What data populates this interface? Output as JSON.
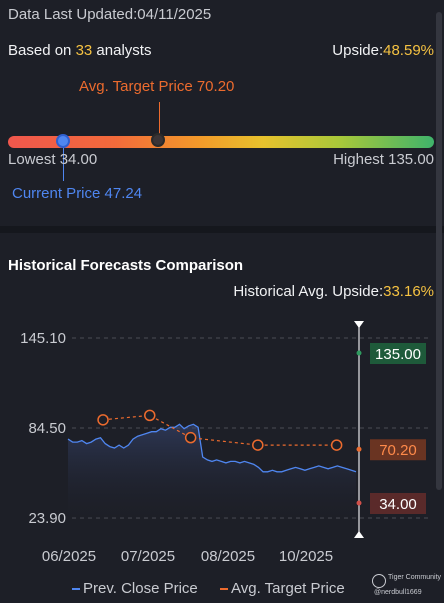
{
  "header": {
    "updated_label": "Data Last Updated:",
    "updated_date": "04/11/2025",
    "based_on_prefix": "Based on ",
    "analyst_count": "33",
    "based_on_suffix": " analysts",
    "upside_label": "Upside:",
    "upside_value": "48.59%"
  },
  "range": {
    "avg_target_label": "Avg. Target Price 70.20",
    "lowest_label": "Lowest 34.00",
    "highest_label": "Highest 135.00",
    "current_label": "Current Price 47.24"
  },
  "history": {
    "title": "Historical Forecasts Comparison",
    "avg_upside_label": "Historical Avg. Upside:",
    "avg_upside_value": "33.16%"
  },
  "legend": {
    "close": "Prev. Close Price",
    "target": "Avg. Target Price"
  },
  "watermark": {
    "brand": "Tiger Community",
    "user": "@nerdbull1669"
  },
  "colors": {
    "accent_yellow": "#f5c242",
    "close_line": "#4f86f0",
    "target_line": "#ec6b2e",
    "high_tag": "#1e5a3a",
    "avg_tag": "#6a3422",
    "low_tag": "#5a2a2a"
  },
  "chart_data": {
    "type": "line",
    "x_ticks": [
      "06/2025",
      "07/2025",
      "08/2025",
      "10/2025"
    ],
    "y_ticks": [
      145.1,
      84.5,
      23.9
    ],
    "y_tick_labels": [
      "145.10",
      "84.50",
      "23.90"
    ],
    "ylim": [
      23.9,
      145.1
    ],
    "series": [
      {
        "name": "Prev. Close Price",
        "values": [
          77,
          75,
          75,
          76,
          74,
          75,
          77,
          78,
          74,
          72,
          71,
          73,
          71,
          73,
          77,
          79,
          80,
          81,
          82,
          82,
          84,
          83,
          85,
          85,
          87,
          84,
          86,
          87,
          85,
          65,
          63,
          62,
          63,
          62,
          61,
          62,
          62,
          61,
          62,
          61,
          60,
          58,
          55,
          55,
          56,
          55,
          55,
          56,
          57,
          58,
          57,
          56,
          57,
          58,
          59,
          58,
          57,
          58,
          59,
          58,
          57,
          56,
          55
        ]
      },
      {
        "name": "Avg. Target Price",
        "points": [
          [
            0.12,
            90
          ],
          [
            0.28,
            93
          ],
          [
            0.42,
            78
          ],
          [
            0.65,
            73
          ],
          [
            0.92,
            73
          ]
        ]
      }
    ],
    "markers": {
      "high": {
        "value": 135.0,
        "label": "135.00"
      },
      "avg": {
        "value": 70.2,
        "label": "70.20"
      },
      "low": {
        "value": 34.0,
        "label": "34.00"
      }
    }
  }
}
